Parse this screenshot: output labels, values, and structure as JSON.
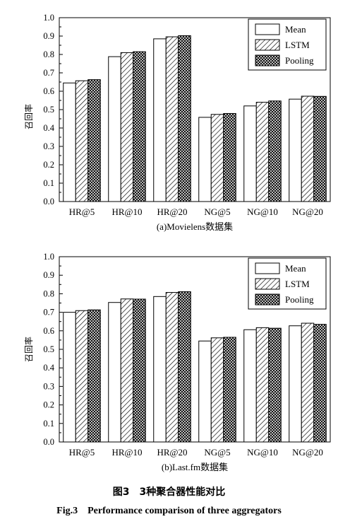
{
  "chart_data": [
    {
      "type": "bar",
      "categories": [
        "HR@5",
        "HR@10",
        "HR@20",
        "NG@5",
        "NG@10",
        "NG@20"
      ],
      "series": [
        {
          "name": "Mean",
          "values": [
            0.645,
            0.788,
            0.885,
            0.458,
            0.52,
            0.557
          ],
          "pattern": "solid-white"
        },
        {
          "name": "LSTM",
          "values": [
            0.657,
            0.81,
            0.896,
            0.474,
            0.54,
            0.573
          ],
          "pattern": "diagonal-hatch"
        },
        {
          "name": "Pooling",
          "values": [
            0.663,
            0.815,
            0.902,
            0.479,
            0.547,
            0.572
          ],
          "pattern": "crosshatch"
        }
      ],
      "ylabel": "召回率",
      "xlabel": "",
      "subtitle": "(a)Movielens数据集",
      "ylim": [
        0.0,
        1.0
      ],
      "yticks": [
        "0.0",
        "0.1",
        "0.2",
        "0.3",
        "0.4",
        "0.5",
        "0.6",
        "0.7",
        "0.8",
        "0.9",
        "1.0"
      ],
      "legend_position": "top-right",
      "grid": false
    },
    {
      "type": "bar",
      "categories": [
        "HR@5",
        "HR@10",
        "HR@20",
        "NG@5",
        "NG@10",
        "NG@20"
      ],
      "series": [
        {
          "name": "Mean",
          "values": [
            0.7,
            0.753,
            0.785,
            0.545,
            0.606,
            0.627
          ],
          "pattern": "solid-white"
        },
        {
          "name": "LSTM",
          "values": [
            0.709,
            0.772,
            0.807,
            0.562,
            0.617,
            0.641
          ],
          "pattern": "diagonal-hatch"
        },
        {
          "name": "Pooling",
          "values": [
            0.713,
            0.771,
            0.811,
            0.565,
            0.614,
            0.635
          ],
          "pattern": "crosshatch"
        }
      ],
      "ylabel": "召回率",
      "xlabel": "",
      "subtitle": "(b)Last.fm数据集",
      "ylim": [
        0.0,
        1.0
      ],
      "yticks": [
        "0.0",
        "0.1",
        "0.2",
        "0.3",
        "0.4",
        "0.5",
        "0.6",
        "0.7",
        "0.8",
        "0.9",
        "1.0"
      ],
      "legend_position": "top-right",
      "grid": false
    }
  ],
  "caption": {
    "zh": "图3　3种聚合器性能对比",
    "en": "Fig.3　Performance comparison of three aggregators"
  },
  "colors": {
    "bar_fill": "#ffffff",
    "stroke": "#000000"
  }
}
